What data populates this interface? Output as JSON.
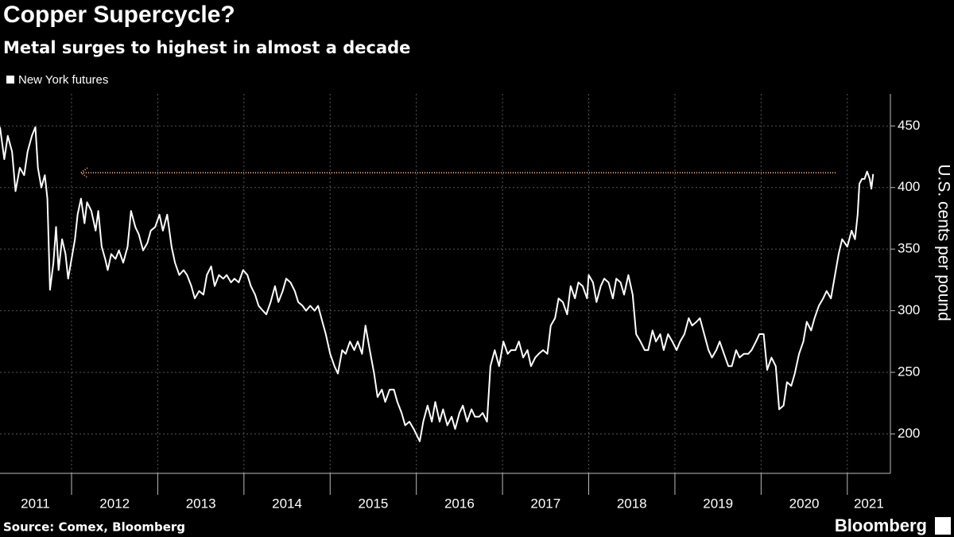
{
  "chart_data": {
    "type": "line",
    "title": "Copper Supercycle?",
    "subtitle": "Metal surges to highest in almost a decade",
    "y_axis_label": "U.S. cents per pound",
    "source": "Source: Comex, Bloomberg",
    "brand": "Bloomberg",
    "xlim": [
      2011.17,
      2021.5
    ],
    "ylim": [
      168,
      476
    ],
    "yticks": [
      200,
      250,
      300,
      350,
      400,
      450
    ],
    "xticks": [
      {
        "value": 2011.58,
        "label": "2011"
      },
      {
        "value": 2012.5,
        "label": "2012"
      },
      {
        "value": 2013.5,
        "label": "2013"
      },
      {
        "value": 2014.5,
        "label": "2014"
      },
      {
        "value": 2015.5,
        "label": "2015"
      },
      {
        "value": 2016.5,
        "label": "2016"
      },
      {
        "value": 2017.5,
        "label": "2017"
      },
      {
        "value": 2018.5,
        "label": "2018"
      },
      {
        "value": 2019.5,
        "label": "2019"
      },
      {
        "value": 2020.5,
        "label": "2020"
      },
      {
        "value": 2021.25,
        "label": "2021"
      }
    ],
    "year_boundaries": [
      2012,
      2013,
      2014,
      2015,
      2016,
      2017,
      2018,
      2019,
      2020,
      2021
    ],
    "grid": true,
    "reference_line": {
      "value": 412,
      "x": [
        2012.11,
        2020.88
      ],
      "color": "#f2a65a"
    },
    "series": [
      {
        "name": "New York futures",
        "color": "#ffffff",
        "x": [
          2011.17,
          2011.22,
          2011.26,
          2011.31,
          2011.35,
          2011.4,
          2011.45,
          2011.49,
          2011.54,
          2011.58,
          2011.61,
          2011.65,
          2011.69,
          2011.72,
          2011.75,
          2011.79,
          2011.82,
          2011.85,
          2011.89,
          2011.93,
          2011.96,
          2012.0,
          2012.04,
          2012.07,
          2012.11,
          2012.15,
          2012.18,
          2012.23,
          2012.28,
          2012.31,
          2012.35,
          2012.39,
          2012.42,
          2012.46,
          2012.51,
          2012.55,
          2012.6,
          2012.65,
          2012.69,
          2012.74,
          2012.78,
          2012.83,
          2012.88,
          2012.92,
          2012.97,
          2013.02,
          2013.06,
          2013.11,
          2013.16,
          2013.2,
          2013.25,
          2013.3,
          2013.34,
          2013.39,
          2013.43,
          2013.48,
          2013.53,
          2013.57,
          2013.62,
          2013.66,
          2013.71,
          2013.76,
          2013.8,
          2013.85,
          2013.89,
          2013.94,
          2013.99,
          2014.04,
          2014.08,
          2014.13,
          2014.17,
          2014.22,
          2014.26,
          2014.31,
          2014.36,
          2014.4,
          2014.45,
          2014.49,
          2014.54,
          2014.59,
          2014.63,
          2014.68,
          2014.72,
          2014.77,
          2014.82,
          2014.86,
          2014.91,
          2014.95,
          2015.0,
          2015.05,
          2015.09,
          2015.14,
          2015.18,
          2015.23,
          2015.28,
          2015.32,
          2015.37,
          2015.41,
          2015.46,
          2015.51,
          2015.55,
          2015.6,
          2015.64,
          2015.69,
          2015.74,
          2015.78,
          2015.83,
          2015.87,
          2015.92,
          2015.97,
          2016.04,
          2016.08,
          2016.13,
          2016.18,
          2016.22,
          2016.27,
          2016.31,
          2016.36,
          2016.41,
          2016.45,
          2016.5,
          2016.54,
          2016.59,
          2016.64,
          2016.68,
          2016.73,
          2016.77,
          2016.82,
          2016.86,
          2016.91,
          2016.96,
          2017.01,
          2017.06,
          2017.1,
          2017.15,
          2017.19,
          2017.24,
          2017.29,
          2017.33,
          2017.38,
          2017.42,
          2017.47,
          2017.52,
          2017.56,
          2017.61,
          2017.65,
          2017.7,
          2017.75,
          2017.79,
          2017.84,
          2017.88,
          2017.93,
          2017.98,
          2018.0,
          2018.05,
          2018.09,
          2018.14,
          2018.18,
          2018.23,
          2018.28,
          2018.32,
          2018.37,
          2018.41,
          2018.46,
          2018.51,
          2018.55,
          2018.6,
          2018.65,
          2018.69,
          2018.74,
          2018.78,
          2018.83,
          2018.87,
          2018.92,
          2018.97,
          2019.02,
          2019.06,
          2019.11,
          2019.16,
          2019.2,
          2019.25,
          2019.29,
          2019.34,
          2019.39,
          2019.43,
          2019.48,
          2019.52,
          2019.57,
          2019.62,
          2019.66,
          2019.71,
          2019.75,
          2019.8,
          2019.85,
          2019.89,
          2019.94,
          2019.98,
          2020.03,
          2020.07,
          2020.12,
          2020.17,
          2020.21,
          2020.26,
          2020.3,
          2020.35,
          2020.39,
          2020.44,
          2020.49,
          2020.53,
          2020.58,
          2020.62,
          2020.67,
          2020.72,
          2020.76,
          2020.81,
          2020.85,
          2020.9,
          2020.94,
          2021.0,
          2021.05,
          2021.09,
          2021.12,
          2021.14,
          2021.17,
          2021.2,
          2021.23,
          2021.26,
          2021.28,
          2021.3
        ],
        "values": [
          449,
          423,
          442,
          429,
          397,
          416,
          410,
          429,
          442,
          449,
          416,
          400,
          410,
          391,
          317,
          339,
          368,
          333,
          358,
          346,
          326,
          342,
          358,
          378,
          391,
          371,
          388,
          381,
          365,
          381,
          352,
          342,
          333,
          346,
          342,
          349,
          339,
          352,
          381,
          368,
          362,
          349,
          355,
          365,
          368,
          378,
          365,
          378,
          352,
          339,
          329,
          333,
          329,
          320,
          310,
          316,
          313,
          329,
          336,
          320,
          329,
          326,
          329,
          323,
          326,
          323,
          333,
          329,
          320,
          313,
          304,
          300,
          297,
          307,
          320,
          307,
          316,
          326,
          323,
          316,
          307,
          304,
          300,
          304,
          300,
          304,
          291,
          281,
          265,
          255,
          249,
          268,
          265,
          275,
          268,
          275,
          265,
          288,
          268,
          249,
          230,
          236,
          226,
          236,
          236,
          226,
          217,
          207,
          210,
          204,
          194,
          210,
          223,
          210,
          226,
          210,
          220,
          207,
          214,
          204,
          217,
          223,
          210,
          220,
          214,
          214,
          217,
          210,
          255,
          268,
          255,
          275,
          265,
          268,
          268,
          275,
          262,
          268,
          255,
          262,
          265,
          268,
          265,
          288,
          294,
          310,
          307,
          297,
          320,
          310,
          323,
          320,
          310,
          329,
          323,
          307,
          320,
          326,
          323,
          310,
          326,
          323,
          313,
          329,
          313,
          281,
          275,
          268,
          268,
          284,
          275,
          281,
          268,
          281,
          275,
          268,
          275,
          281,
          294,
          288,
          291,
          294,
          281,
          268,
          262,
          268,
          275,
          265,
          255,
          255,
          268,
          262,
          265,
          265,
          268,
          275,
          281,
          281,
          252,
          262,
          255,
          220,
          223,
          242,
          239,
          249,
          265,
          275,
          291,
          284,
          294,
          304,
          310,
          316,
          310,
          326,
          346,
          358,
          352,
          365,
          358,
          378,
          403,
          407,
          407,
          413,
          407,
          399,
          411
        ]
      }
    ]
  }
}
